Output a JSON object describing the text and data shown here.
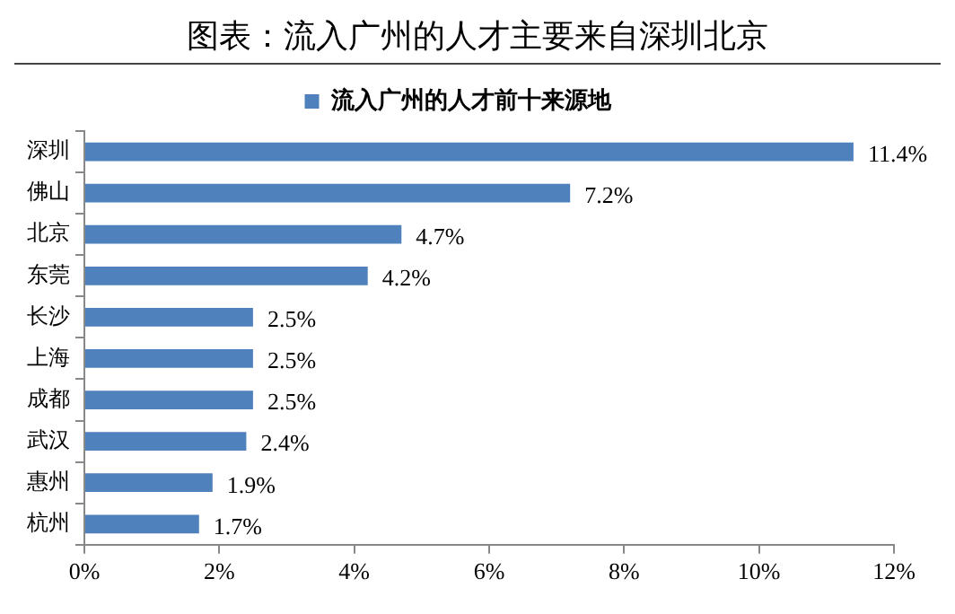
{
  "chart_data": {
    "type": "bar",
    "orientation": "horizontal",
    "title": "图表：流入广州的人才主要来自深圳北京",
    "categories": [
      "深圳",
      "佛山",
      "北京",
      "东莞",
      "长沙",
      "上海",
      "成都",
      "武汉",
      "惠州",
      "杭州"
    ],
    "series": [
      {
        "name": "流入广州的人才前十来源地",
        "color": "#4f81bd",
        "values": [
          11.4,
          7.2,
          4.7,
          4.2,
          2.5,
          2.5,
          2.5,
          2.4,
          1.9,
          1.7
        ],
        "value_labels": [
          "11.4%",
          "7.2%",
          "4.7%",
          "4.2%",
          "2.5%",
          "2.5%",
          "2.5%",
          "2.4%",
          "1.9%",
          "1.7%"
        ]
      }
    ],
    "xlim": [
      0,
      12
    ],
    "xticks": [
      {
        "value": 0,
        "label": "0%"
      },
      {
        "value": 2,
        "label": "2%"
      },
      {
        "value": 4,
        "label": "4%"
      },
      {
        "value": 6,
        "label": "6%"
      },
      {
        "value": 8,
        "label": "8%"
      },
      {
        "value": 10,
        "label": "10%"
      },
      {
        "value": 12,
        "label": "12%"
      }
    ],
    "grid": false,
    "legend": "top"
  }
}
